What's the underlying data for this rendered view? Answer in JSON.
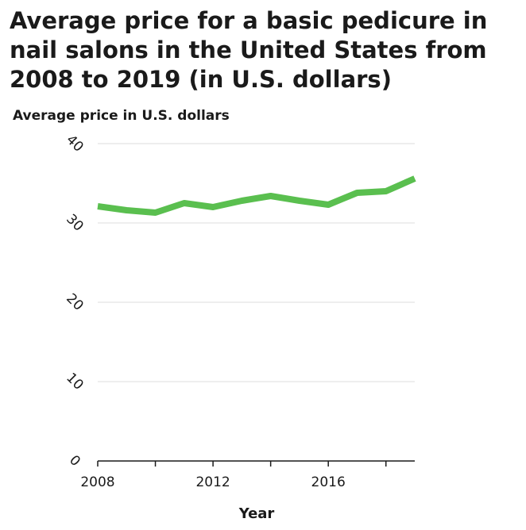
{
  "chart_data": {
    "type": "line",
    "title": "Average price for a basic pedicure in nail salons in the United States from 2008 to 2019 (in U.S. dollars)",
    "xlabel": "Year",
    "ylabel": "Average price in U.S. dollars",
    "x": [
      2008,
      2009,
      2010,
      2011,
      2012,
      2013,
      2014,
      2015,
      2016,
      2017,
      2018,
      2019
    ],
    "series": [
      {
        "name": "Average price",
        "values": [
          32.1,
          31.6,
          31.3,
          32.5,
          32.0,
          32.8,
          33.4,
          32.8,
          32.3,
          33.8,
          34.0,
          35.6
        ]
      }
    ],
    "xticks": [
      "2008",
      "2012",
      "2016"
    ],
    "yticks": [
      "0",
      "10",
      "20",
      "30",
      "40"
    ],
    "ylim": [
      0,
      40
    ],
    "xlim": [
      2008,
      2019
    ],
    "grid": true,
    "line_color": "#5abf4f",
    "grid_color": "#dcdcdc",
    "axis_color": "#1a1a1a"
  }
}
